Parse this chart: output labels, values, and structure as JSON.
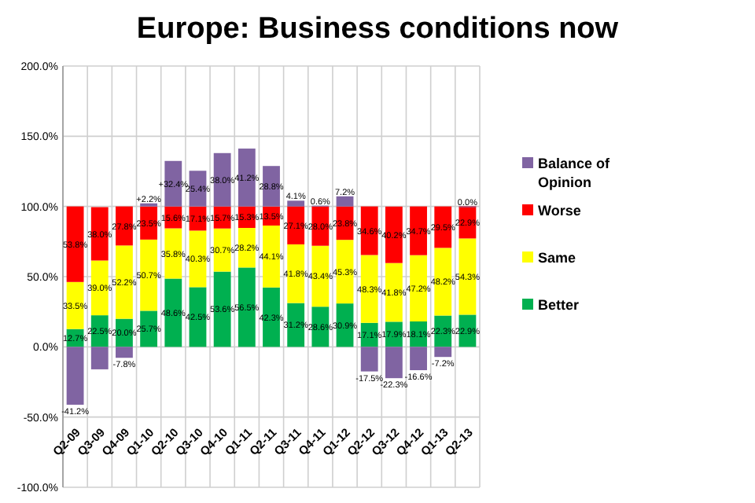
{
  "chart_data": {
    "type": "bar",
    "title": "Europe: Business conditions now",
    "stacked": true,
    "grid": true,
    "legend": "right",
    "categories": [
      "Q2-09",
      "Q3-09",
      "Q4-09",
      "Q1-10",
      "Q2-10",
      "Q3-10",
      "Q4-10",
      "Q1-11",
      "Q2-11",
      "Q3-11",
      "Q4-11",
      "Q1-12",
      "Q2-12",
      "Q3-12",
      "Q4-12",
      "Q1-13",
      "Q2-13"
    ],
    "ylim": [
      -100,
      200
    ],
    "yticks": [
      {
        "value": -100,
        "label": "-100.0%"
      },
      {
        "value": -50,
        "label": "-50.0%"
      },
      {
        "value": 0,
        "label": "0.0%"
      },
      {
        "value": 50,
        "label": "50.0%"
      },
      {
        "value": 100,
        "label": "100.0%"
      },
      {
        "value": 150,
        "label": "150.0%"
      },
      {
        "value": 200,
        "label": "200.0%"
      }
    ],
    "series": [
      {
        "name": "Better",
        "color": "#00b050",
        "values": [
          12.7,
          22.5,
          20.0,
          25.7,
          48.6,
          42.5,
          53.6,
          56.5,
          42.3,
          31.2,
          28.6,
          30.9,
          17.1,
          17.9,
          18.1,
          22.3,
          22.9
        ],
        "value_labels": [
          "12.7%",
          "22.5%",
          "20.0%",
          "25.7%",
          "48.6%",
          "42.5%",
          "53.6%",
          "56.5%",
          "42.3%",
          "31.2%",
          "28.6%",
          "30.9%",
          "17.1%",
          "17.9%",
          "18.1%",
          "22.3%",
          "22.9%"
        ]
      },
      {
        "name": "Same",
        "color": "#ffff00",
        "values": [
          33.5,
          39.0,
          52.2,
          50.7,
          35.8,
          40.3,
          30.7,
          28.2,
          44.1,
          41.8,
          43.4,
          45.3,
          48.3,
          41.8,
          47.2,
          48.2,
          54.3
        ],
        "value_labels": [
          "33.5%",
          "39.0%",
          "52.2%",
          "50.7%",
          "35.8%",
          "40.3%",
          "30.7%",
          "28.2%",
          "44.1%",
          "41.8%",
          "43.4%",
          "45.3%",
          "48.3%",
          "41.8%",
          "47.2%",
          "48.2%",
          "54.3%"
        ]
      },
      {
        "name": "Worse",
        "color": "#ff0000",
        "values": [
          53.8,
          38.0,
          27.8,
          23.5,
          15.6,
          17.1,
          15.7,
          15.3,
          13.5,
          27.1,
          28.0,
          23.8,
          34.6,
          40.2,
          34.7,
          29.5,
          22.9
        ],
        "value_labels": [
          "53.8%",
          "38.0%",
          "27.8%",
          "23.5%",
          "15.6%",
          "17.1%",
          "15.7%",
          "15.3%",
          "13.5%",
          "27.1%",
          "28.0%",
          "23.8%",
          "34.6%",
          "40.2%",
          "34.7%",
          "29.5%",
          "22.9%"
        ]
      },
      {
        "name": "Balance of Opinion",
        "color": "#8064a2",
        "base": [
          0,
          0,
          0,
          100,
          100,
          100,
          100,
          100,
          100,
          100,
          100,
          100,
          0,
          0,
          0,
          0,
          100
        ],
        "values": [
          -41.2,
          -16,
          -7.8,
          2.2,
          32.4,
          25.4,
          38.0,
          41.2,
          28.8,
          4.1,
          0.6,
          7.2,
          -17.5,
          -22.3,
          -16.6,
          -7.2,
          0.0
        ],
        "value_labels": [
          "-41.2%",
          null,
          "-7.8%",
          "+2.2%",
          "+32.4%",
          "25.4%",
          "38.0%",
          "41.2%",
          "28.8%",
          "4.1%",
          "0.6%",
          "7.2%",
          "-17.5%",
          "-22.3%",
          "-16.6%",
          "-7.2%",
          "0.0%"
        ]
      }
    ]
  }
}
